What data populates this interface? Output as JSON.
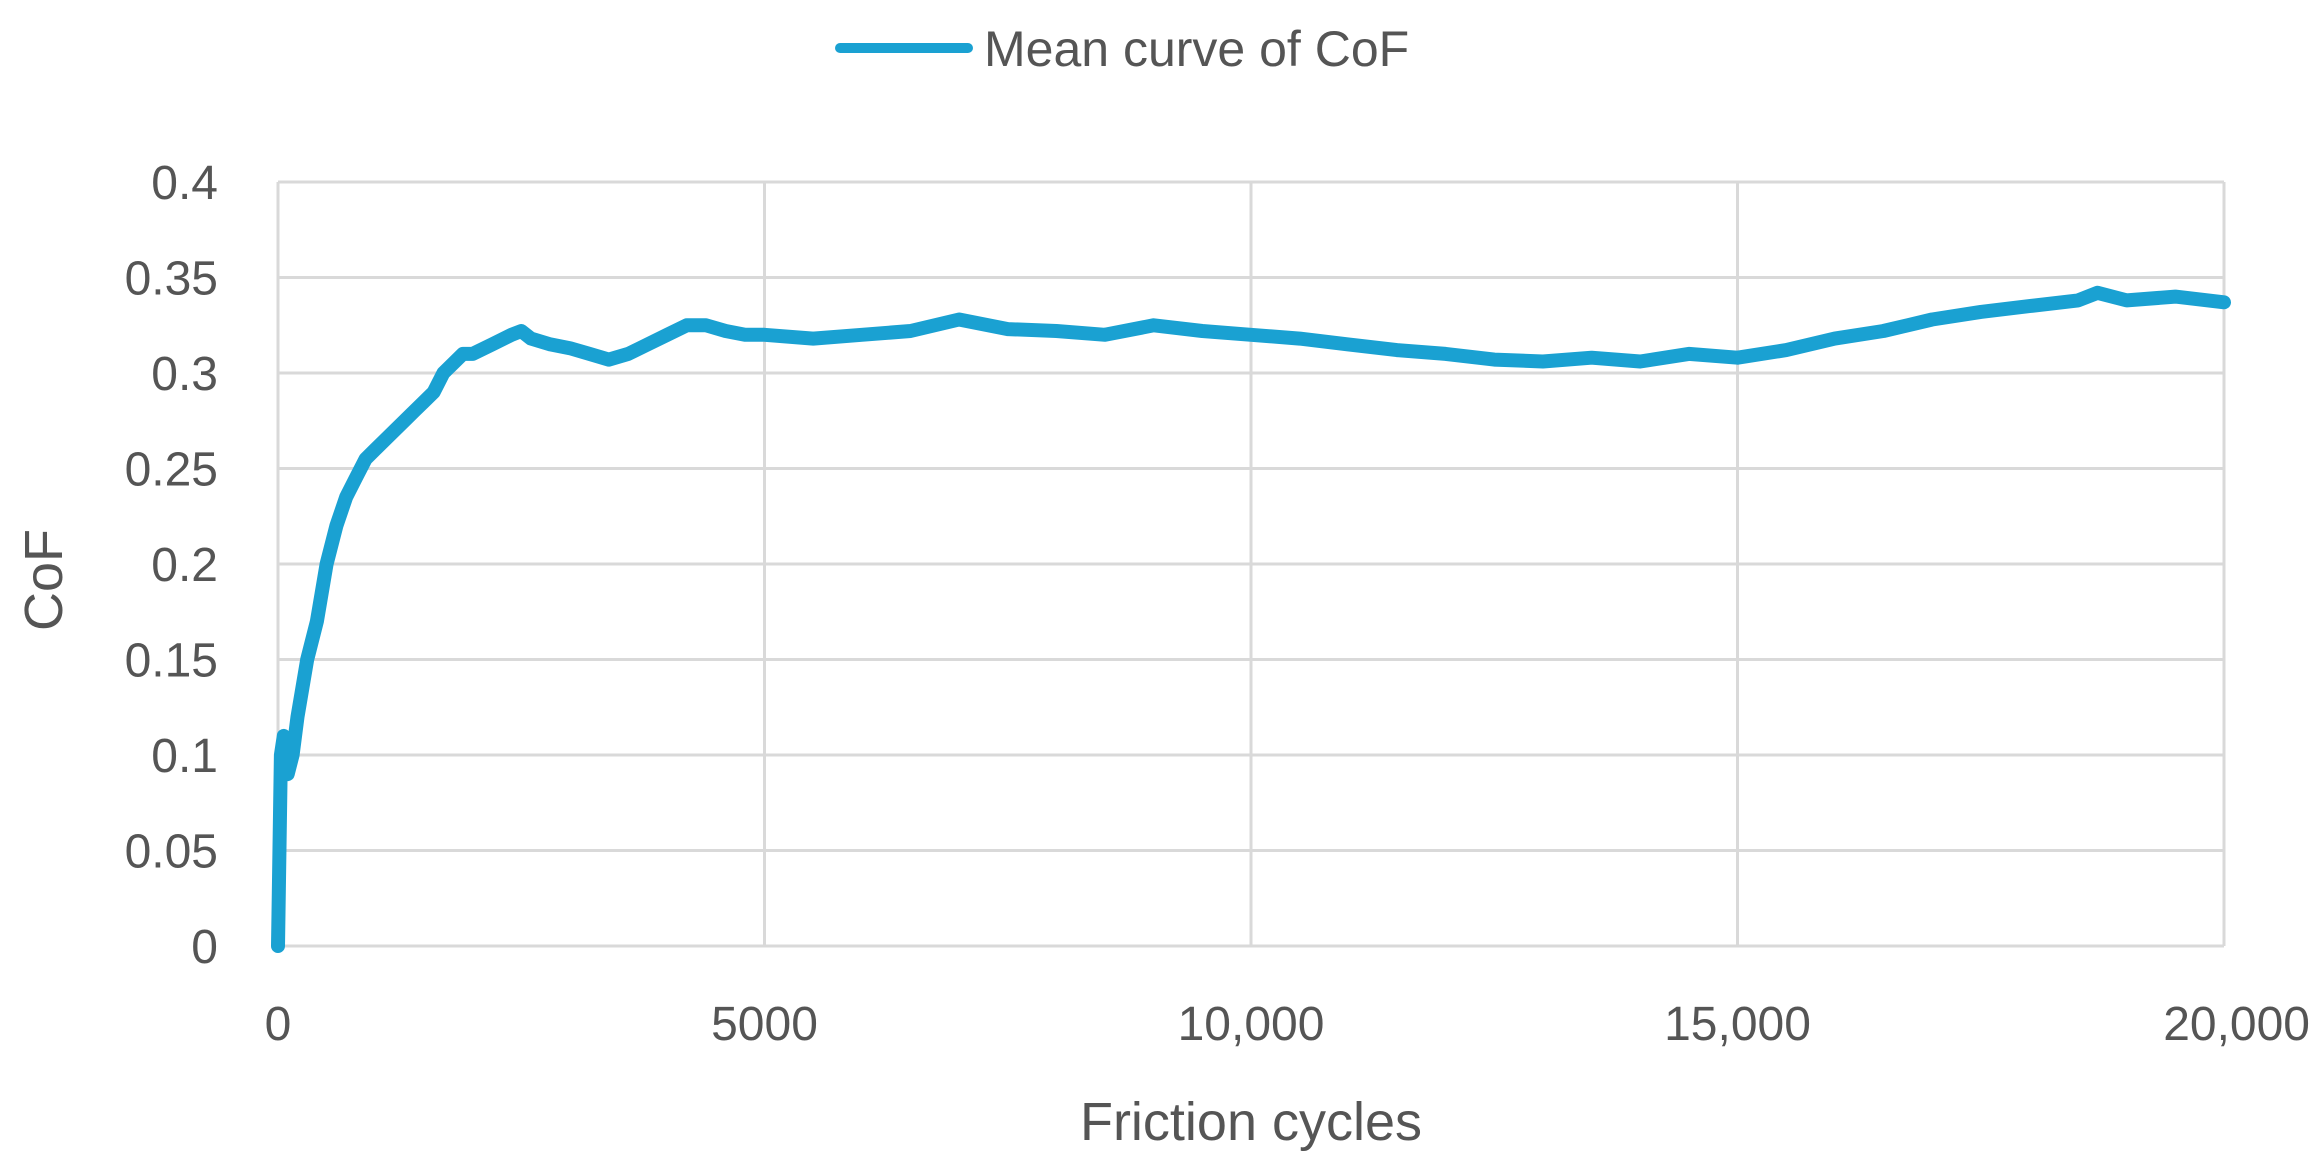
{
  "chart_data": {
    "type": "line",
    "xlabel": "Friction cycles",
    "ylabel": "CoF",
    "xlim": [
      0,
      20000
    ],
    "ylim": [
      0,
      0.4
    ],
    "x_ticks": [
      0,
      5000,
      10000,
      15000,
      20000
    ],
    "x_tick_labels": [
      "0",
      "5000",
      "10,000",
      "15,000",
      "20,000"
    ],
    "y_ticks": [
      0,
      0.05,
      0.1,
      0.15,
      0.2,
      0.25,
      0.3,
      0.35,
      0.4
    ],
    "y_tick_labels": [
      "0",
      "0.05",
      "0.1",
      "0.15",
      "0.2",
      "0.25",
      "0.3",
      "0.35",
      "0.4"
    ],
    "grid": true,
    "legend_position": "top-center",
    "series": [
      {
        "name": "Mean curve of CoF",
        "color": "#1aa1d2",
        "x": [
          0,
          30,
          60,
          100,
          150,
          200,
          300,
          400,
          500,
          600,
          700,
          800,
          900,
          1000,
          1100,
          1200,
          1300,
          1400,
          1500,
          1600,
          1700,
          1800,
          1900,
          2000,
          2200,
          2400,
          2500,
          2600,
          2800,
          3000,
          3200,
          3400,
          3600,
          3800,
          4000,
          4200,
          4400,
          4600,
          4800,
          5000,
          5500,
          6000,
          6500,
          7000,
          7500,
          8000,
          8500,
          9000,
          9500,
          10000,
          10500,
          11000,
          11500,
          12000,
          12500,
          13000,
          13500,
          14000,
          14500,
          15000,
          15500,
          16000,
          16500,
          17000,
          17500,
          18000,
          18500,
          18700,
          19000,
          19500,
          20000
        ],
        "y": [
          0.0,
          0.1,
          0.11,
          0.09,
          0.1,
          0.12,
          0.15,
          0.17,
          0.2,
          0.22,
          0.235,
          0.245,
          0.255,
          0.26,
          0.265,
          0.27,
          0.275,
          0.28,
          0.285,
          0.29,
          0.3,
          0.305,
          0.31,
          0.31,
          0.315,
          0.32,
          0.322,
          0.318,
          0.315,
          0.313,
          0.31,
          0.307,
          0.31,
          0.315,
          0.32,
          0.325,
          0.325,
          0.322,
          0.32,
          0.32,
          0.318,
          0.32,
          0.322,
          0.328,
          0.323,
          0.322,
          0.32,
          0.325,
          0.322,
          0.32,
          0.318,
          0.315,
          0.312,
          0.31,
          0.307,
          0.306,
          0.308,
          0.306,
          0.31,
          0.308,
          0.312,
          0.318,
          0.322,
          0.328,
          0.332,
          0.335,
          0.338,
          0.342,
          0.338,
          0.34,
          0.337
        ]
      }
    ]
  }
}
